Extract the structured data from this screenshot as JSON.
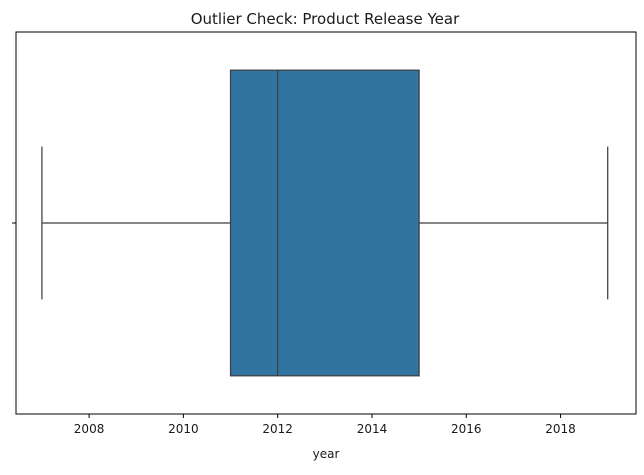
{
  "chart_data": {
    "type": "boxplot",
    "title": "Outlier Check: Product Release Year",
    "xlabel": "year",
    "ylabel": "",
    "orientation": "horizontal",
    "xlim": [
      2006.45,
      2019.6
    ],
    "x_ticks": [
      2008,
      2010,
      2012,
      2014,
      2016,
      2018
    ],
    "y_ticks": [
      ""
    ],
    "box": {
      "whisker_low": 2007,
      "q1": 2011,
      "median": 2012,
      "q3": 2015,
      "whisker_high": 2019
    },
    "outliers": [],
    "box_color": "#3274a1",
    "line_color": "#3f3f3f",
    "grid": false,
    "legend": "none"
  }
}
